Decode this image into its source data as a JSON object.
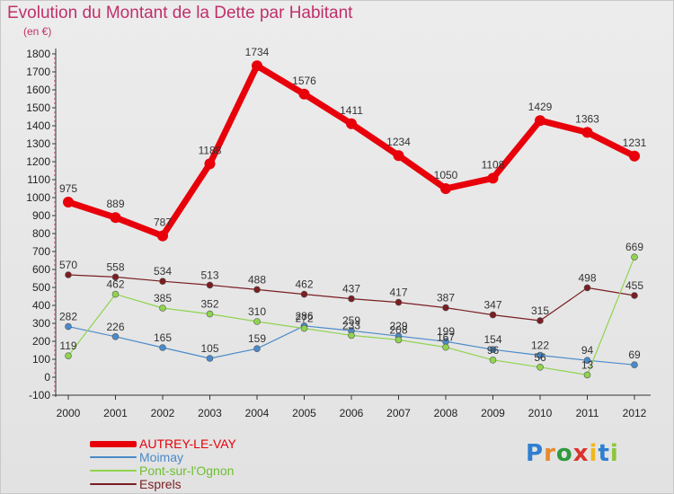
{
  "header": {
    "title": "Evolution du Montant de la Dette par Habitant",
    "subtitle": "(en €)"
  },
  "brand": {
    "logo_text": "Proxiti",
    "letters": [
      "P",
      "r",
      "o",
      "x",
      "i",
      "t",
      "i"
    ],
    "letter_colors": [
      "#2f7fd1",
      "#e8892a",
      "#2f9a3e",
      "#d9342b",
      "#f0b81d",
      "#2f7fd1",
      "#8cc63f"
    ]
  },
  "chart_data": {
    "type": "line",
    "x": [
      "2000",
      "2001",
      "2002",
      "2003",
      "2004",
      "2005",
      "2006",
      "2007",
      "2008",
      "2009",
      "2010",
      "2011",
      "2012"
    ],
    "ylim": [
      -100,
      1800
    ],
    "yticks": [
      -100,
      0,
      100,
      200,
      300,
      400,
      500,
      600,
      700,
      800,
      900,
      1000,
      1100,
      1200,
      1300,
      1400,
      1500,
      1600,
      1700,
      1800
    ],
    "ylabel": "",
    "xlabel": "",
    "grid": false,
    "legend_position": "bottom-left",
    "series": [
      {
        "name": "AUTREY-LE-VAY",
        "color": "#e8000a",
        "values": [
          975,
          889,
          787,
          1188,
          1734,
          1576,
          1411,
          1234,
          1050,
          1108,
          1429,
          1363,
          1231
        ],
        "labels": [
          "975",
          "889",
          "787",
          "1188",
          "1734",
          "1576",
          "1411",
          "1234",
          "1050",
          "1108",
          "1429",
          "1363",
          "1231"
        ]
      },
      {
        "name": "Moimay",
        "color": "#4a8ac9",
        "values": [
          282,
          226,
          165,
          105,
          159,
          286,
          259,
          229,
          199,
          154,
          122,
          94,
          69
        ],
        "labels": [
          "282",
          "226",
          "165",
          "105",
          "159",
          "286",
          "259",
          "229",
          "199",
          "154",
          "122",
          "94",
          "69"
        ]
      },
      {
        "name": "Pont-sur-l'Ognon",
        "color": "#8fd44e",
        "values": [
          119,
          462,
          385,
          352,
          310,
          272,
          233,
          208,
          167,
          96,
          56,
          13,
          669
        ],
        "labels": [
          "119",
          "462",
          "385",
          "352",
          "310",
          "272",
          "233",
          "208",
          "167",
          "96",
          "56",
          "13",
          "669"
        ]
      },
      {
        "name": "Esprels",
        "color": "#7a1e22",
        "values": [
          570,
          558,
          534,
          513,
          488,
          462,
          437,
          417,
          387,
          347,
          315,
          498,
          455
        ],
        "labels": [
          "570",
          "558",
          "534",
          "513",
          "488",
          "462",
          "437",
          "417",
          "387",
          "347",
          "315",
          "498",
          "455"
        ]
      }
    ]
  }
}
